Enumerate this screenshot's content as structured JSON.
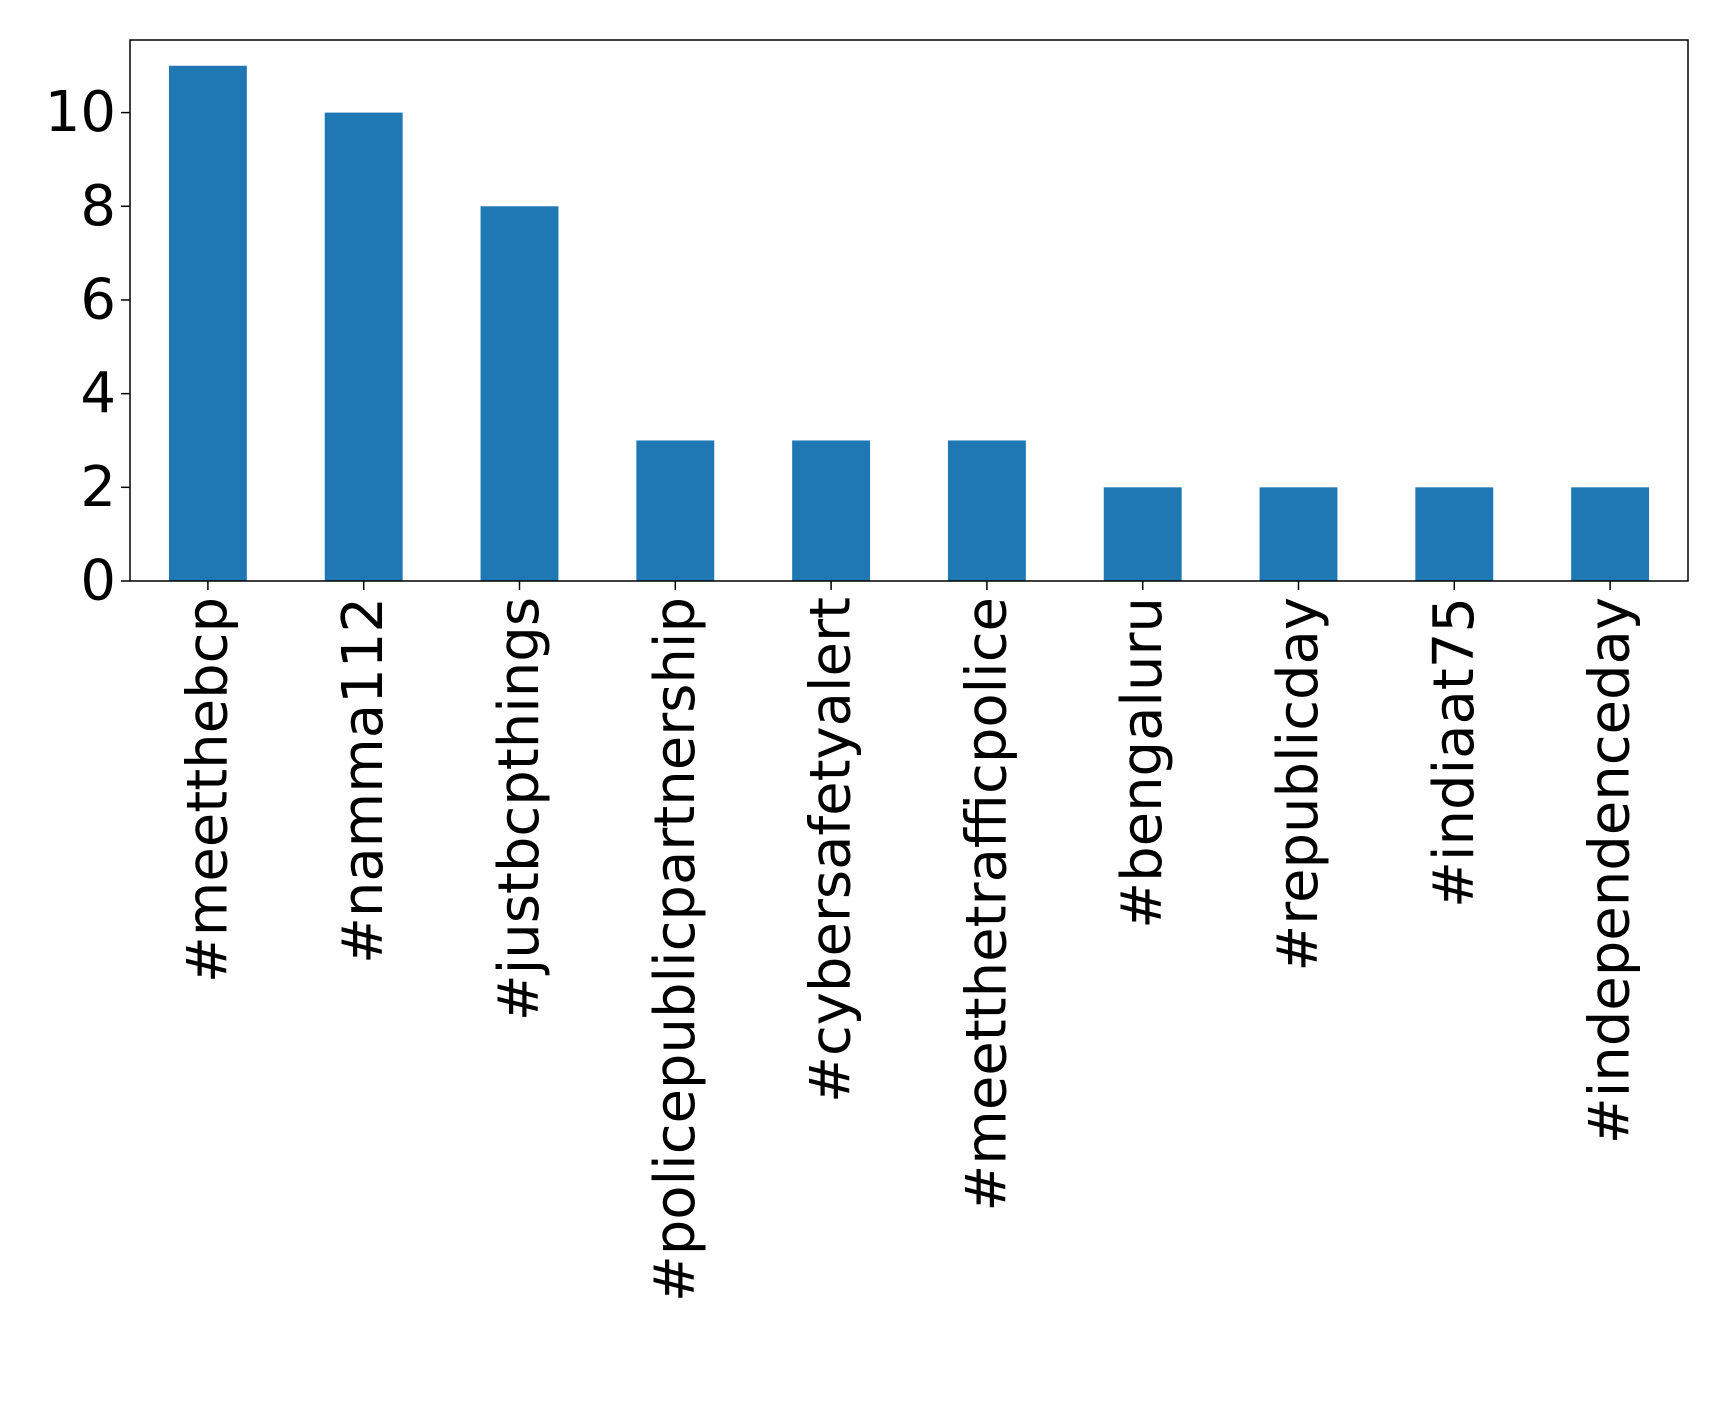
{
  "chart_data": {
    "type": "bar",
    "categories": [
      "#meetthebcp",
      "#namma112",
      "#justbcpthings",
      "#policepublicpartnership",
      "#cybersafetyalert",
      "#meetthetrafficpolice",
      "#bengaluru",
      "#republicday",
      "#indiaat75",
      "#independenceday"
    ],
    "values": [
      11,
      10,
      8,
      3,
      3,
      3,
      2,
      2,
      2,
      2
    ],
    "title": "",
    "xlabel": "",
    "ylabel": "",
    "ylim": [
      0,
      11.55
    ],
    "yticks": [
      0,
      2,
      4,
      6,
      8,
      10
    ],
    "bar_color": "#1f77b4",
    "grid": false,
    "legend": "none"
  }
}
